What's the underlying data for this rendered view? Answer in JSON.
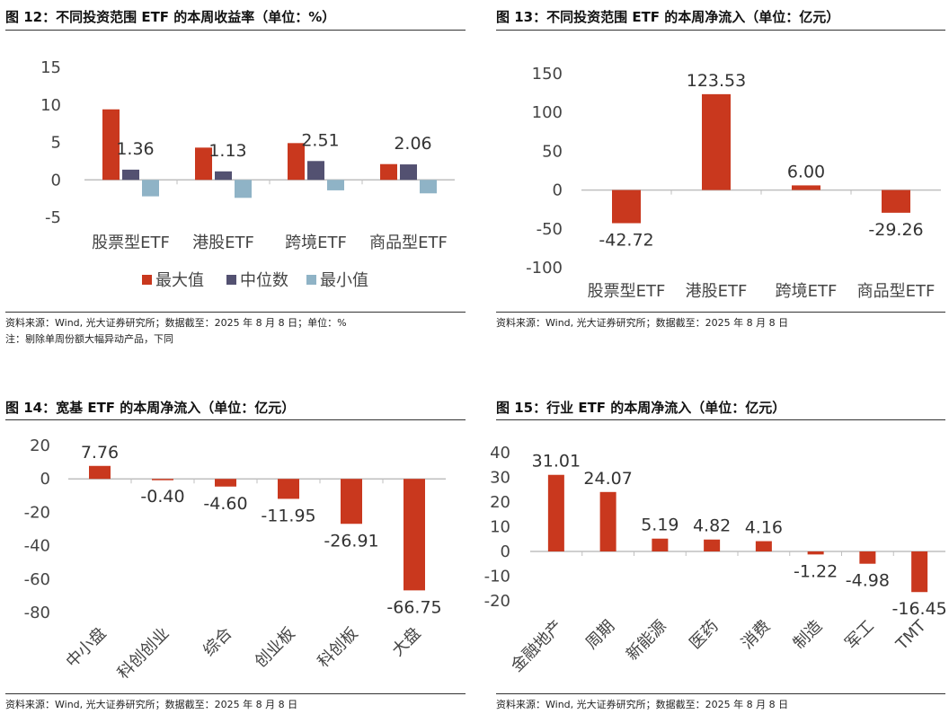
{
  "colors": {
    "max": "#c9381e",
    "median": "#535171",
    "min": "#8fb3c6",
    "flow": "#c9381e",
    "axis": "#bfbfbf"
  },
  "panels": [
    {
      "title": "图 12：不同投资范围 ETF 的本周收益率（单位：%）",
      "notes": [
        "资料来源：Wind, 光大证券研究所；数据截至：2025 年 8 月 8 日；单位：%",
        "注：剔除单周份额大幅异动产品，下同"
      ]
    },
    {
      "title": "图 13：不同投资范围 ETF 的本周净流入（单位：亿元）",
      "notes": [
        "资料来源：Wind, 光大证券研究所；数据截至：2025 年 8 月 8 日"
      ]
    },
    {
      "title": "图 14：宽基 ETF 的本周净流入（单位：亿元）",
      "notes": [
        "资料来源：Wind, 光大证券研究所；数据截至：2025 年 8 月 8 日"
      ]
    },
    {
      "title": "图 15：行业 ETF 的本周净流入（单位：亿元）",
      "notes": [
        "资料来源：Wind, 光大证券研究所；数据截至：2025 年 8 月 8 日"
      ]
    }
  ],
  "chart_data": [
    {
      "type": "bar",
      "categories": [
        "股票型ETF",
        "港股ETF",
        "跨境ETF",
        "商品型ETF"
      ],
      "series": [
        {
          "name": "最大值",
          "values": [
            9.4,
            4.3,
            4.9,
            2.1
          ]
        },
        {
          "name": "中位数",
          "values": [
            1.36,
            1.13,
            2.51,
            2.06
          ]
        },
        {
          "name": "最小值",
          "values": [
            -2.2,
            -2.4,
            -1.4,
            -1.8
          ]
        }
      ],
      "labeled_series": "中位数",
      "ylim": [
        -5,
        15
      ],
      "yticks": [
        -5,
        0,
        5,
        10,
        15
      ],
      "legend": "bottom"
    },
    {
      "type": "bar",
      "categories": [
        "股票型ETF",
        "港股ETF",
        "跨境ETF",
        "商品型ETF"
      ],
      "values": [
        -42.72,
        123.53,
        6.0,
        -29.26
      ],
      "value_labels": [
        "-42.72",
        "123.53",
        "6.00",
        "-29.26"
      ],
      "ylim": [
        -100,
        150
      ],
      "yticks": [
        -100,
        -50,
        0,
        50,
        100,
        150
      ]
    },
    {
      "type": "bar",
      "categories": [
        "中小盘",
        "科创创业",
        "综合",
        "创业板",
        "科创板",
        "大盘"
      ],
      "values": [
        7.76,
        -0.4,
        -4.6,
        -11.95,
        -26.91,
        -66.75
      ],
      "value_labels": [
        "7.76",
        "-0.40",
        "-4.60",
        "-11.95",
        "-26.91",
        "-66.75"
      ],
      "ylim": [
        -80,
        20
      ],
      "yticks": [
        -80,
        -60,
        -40,
        -20,
        0,
        20
      ]
    },
    {
      "type": "bar",
      "categories": [
        "金融地产",
        "周期",
        "新能源",
        "医药",
        "消费",
        "制造",
        "军工",
        "TMT"
      ],
      "values": [
        31.01,
        24.07,
        5.19,
        4.82,
        4.16,
        -1.22,
        -4.98,
        -16.45
      ],
      "value_labels": [
        "31.01",
        "24.07",
        "5.19",
        "4.82",
        "4.16",
        "-1.22",
        "-4.98",
        "-16.45"
      ],
      "ylim": [
        -20,
        40
      ],
      "yticks": [
        -20,
        -10,
        0,
        10,
        20,
        30,
        40
      ]
    }
  ]
}
